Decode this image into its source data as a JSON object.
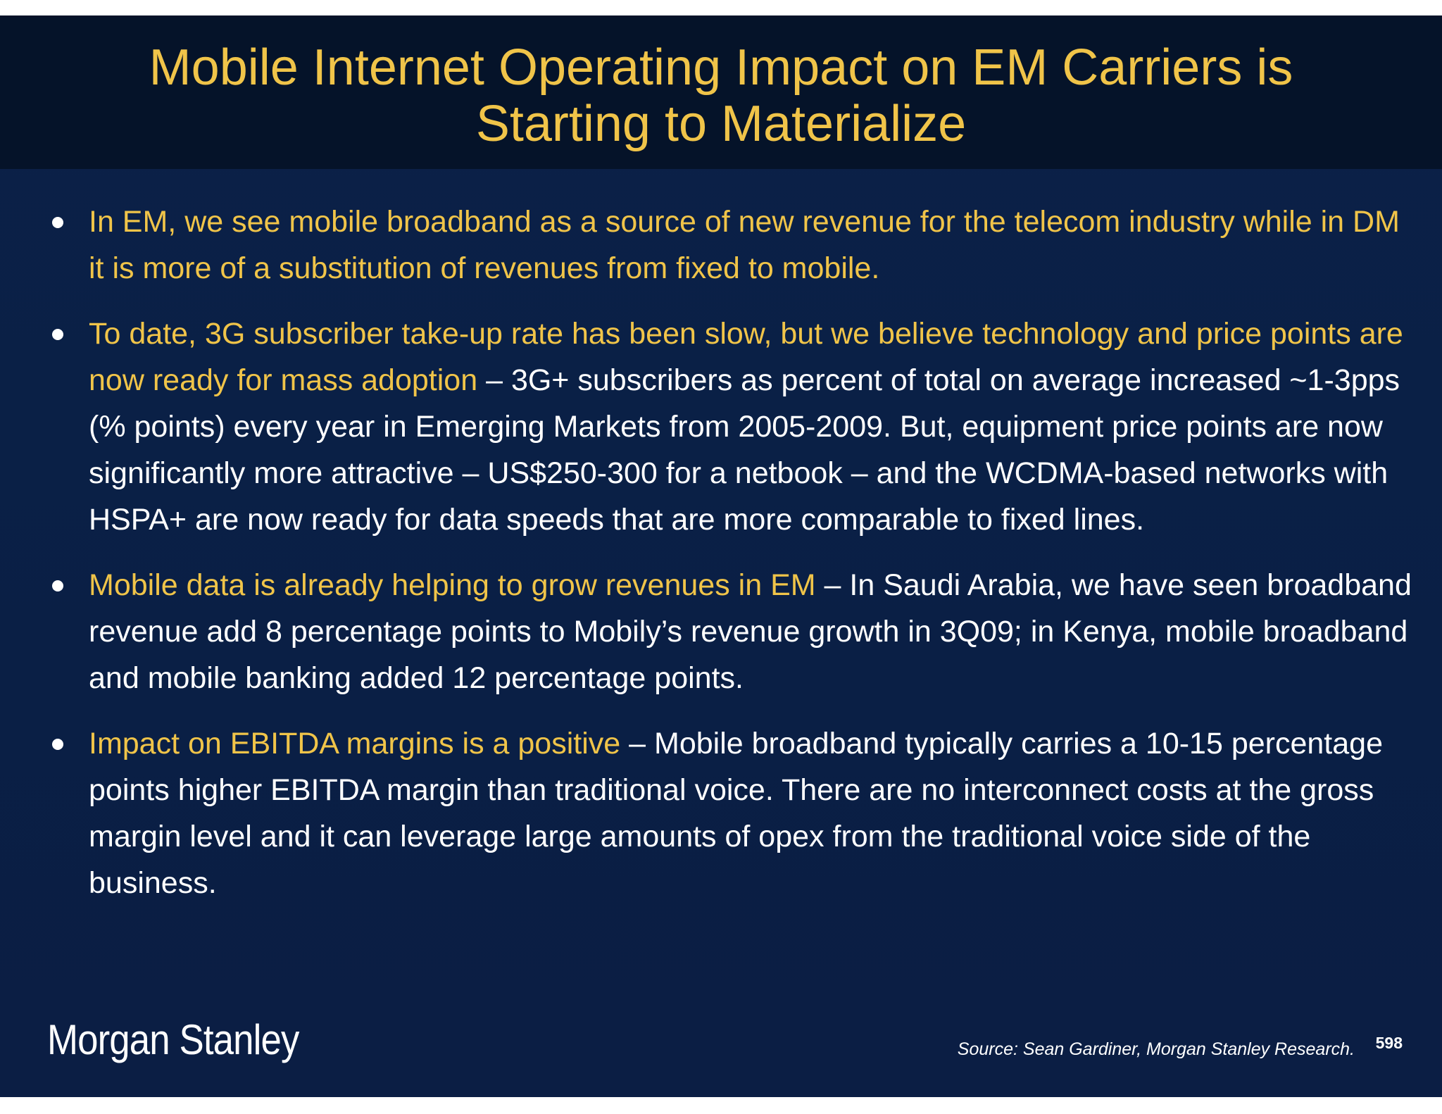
{
  "slide": {
    "title_line1": "Mobile Internet Operating Impact on EM Carriers is",
    "title_line2": "Starting to Materialize",
    "bullets": [
      {
        "highlight": "In EM, we see mobile broadband as a source of new revenue for the telecom industry while in DM it is more of a substitution of revenues from fixed to mobile.",
        "body": ""
      },
      {
        "highlight": "To date, 3G subscriber take-up rate has been slow, but we believe technology and price points are now ready for mass adoption",
        "body": " – 3G+ subscribers as percent of total on average increased ~1-3pps (% points) every year in Emerging Markets from 2005-2009. But, equipment price points are now significantly more attractive – US$250-300 for a netbook – and the WCDMA-based networks with HSPA+ are now ready for data speeds that are more comparable to fixed lines."
      },
      {
        "highlight": "Mobile data is already helping to grow revenues in EM",
        "body": " – In Saudi Arabia, we have seen broadband revenue add 8 percentage points to Mobily’s revenue growth in 3Q09; in Kenya, mobile broadband and mobile banking added 12 percentage points."
      },
      {
        "highlight": "Impact on EBITDA margins is a positive",
        "body": " – Mobile broadband typically carries a 10-15 percentage points higher EBITDA margin than traditional voice.  There are no interconnect costs at the gross margin level and it can leverage large amounts of opex from the traditional voice side of the business."
      }
    ],
    "logo_text": "Morgan Stanley",
    "source": "Source: Sean Gardiner, Morgan Stanley Research.",
    "page_number": "598"
  },
  "colors": {
    "title_band": "#051329",
    "background": "#0a1f45",
    "highlight_text": "#f0c449",
    "body_text": "#ffffff"
  }
}
